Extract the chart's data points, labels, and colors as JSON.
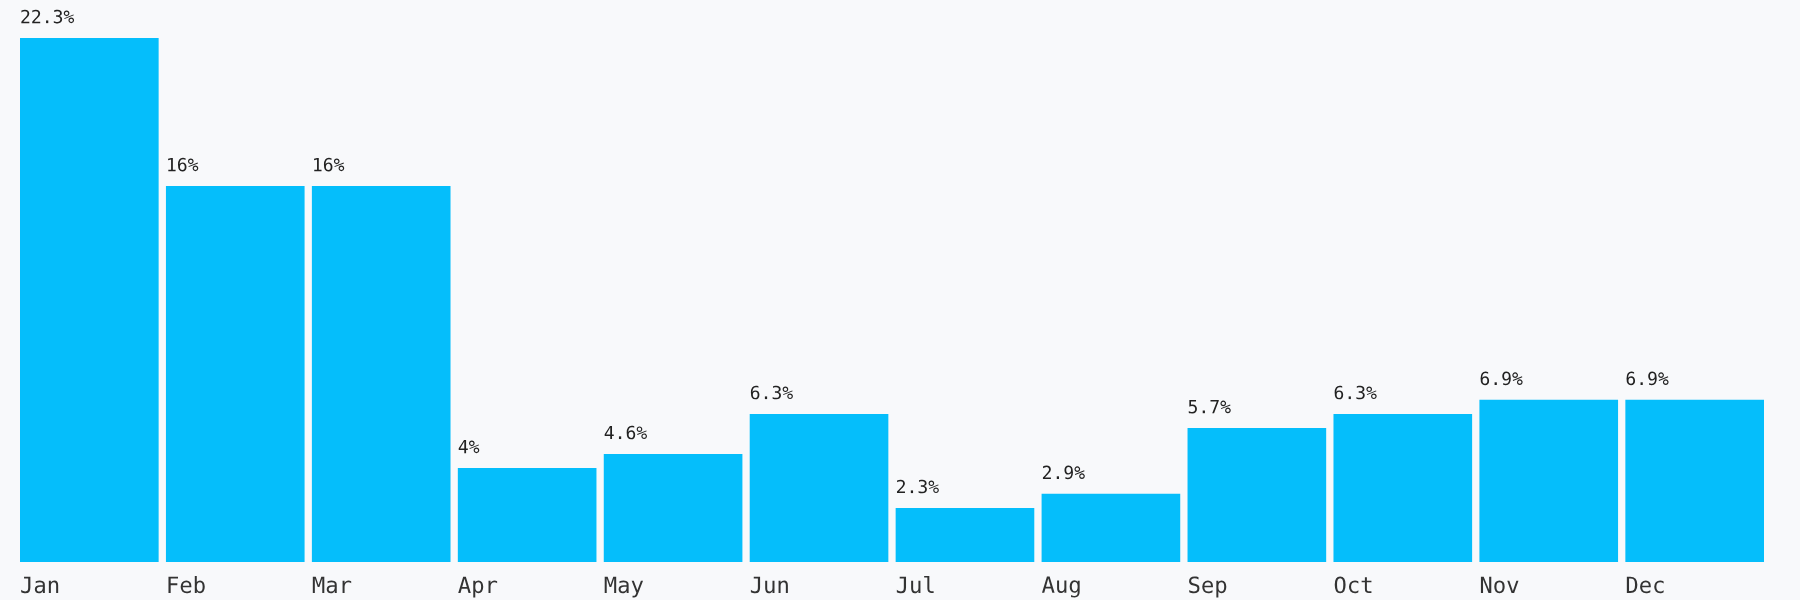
{
  "chart_data": {
    "type": "bar",
    "categories": [
      "Jan",
      "Feb",
      "Mar",
      "Apr",
      "May",
      "Jun",
      "Jul",
      "Aug",
      "Sep",
      "Oct",
      "Nov",
      "Dec"
    ],
    "values": [
      22.3,
      16,
      16,
      4,
      4.6,
      6.3,
      2.3,
      2.9,
      5.7,
      6.3,
      6.9,
      6.9
    ],
    "value_labels": [
      "22.3%",
      "16%",
      "16%",
      "4%",
      "4.6%",
      "6.3%",
      "2.3%",
      "2.9%",
      "5.7%",
      "6.3%",
      "6.9%",
      "6.9%"
    ],
    "color": "#05befb",
    "grid": false,
    "legend": false
  }
}
